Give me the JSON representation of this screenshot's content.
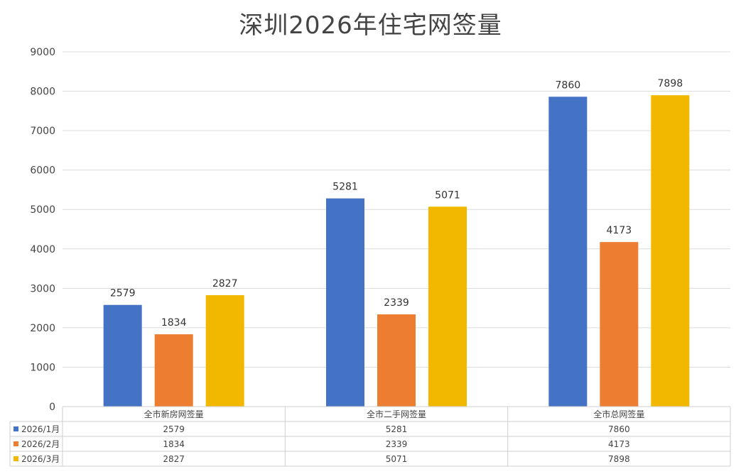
{
  "chart_data": {
    "type": "bar",
    "title": "深圳2026年住宅网签量",
    "categories": [
      "全市新房网签量",
      "全市二手网签量",
      "全市总网签量"
    ],
    "series": [
      {
        "name": "2026/1月",
        "color": "#4472c4",
        "values": [
          2579,
          5281,
          7860
        ]
      },
      {
        "name": "2026/2月",
        "color": "#ed7d31",
        "values": [
          1834,
          2339,
          4173
        ]
      },
      {
        "name": "2026/3月",
        "color": "#f2b800",
        "values": [
          2827,
          5071,
          7898
        ]
      }
    ],
    "ylim": [
      0,
      9000
    ],
    "yticks": [
      0,
      1000,
      2000,
      3000,
      4000,
      5000,
      6000,
      7000,
      8000,
      9000
    ],
    "grid": true,
    "legend": "data table below chart",
    "xlabel": "",
    "ylabel": ""
  }
}
